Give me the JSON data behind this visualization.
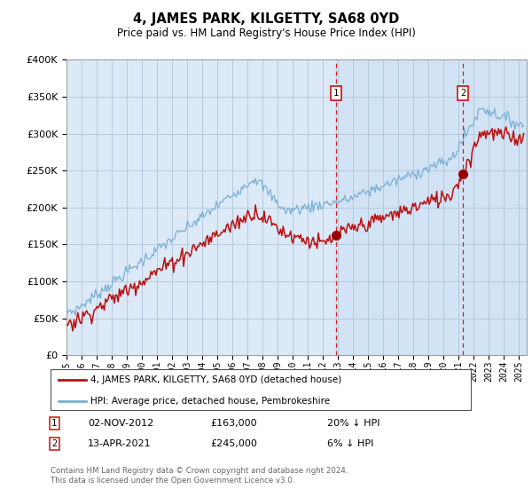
{
  "title": "4, JAMES PARK, KILGETTY, SA68 0YD",
  "subtitle": "Price paid vs. HM Land Registry's House Price Index (HPI)",
  "ylim": [
    0,
    400000
  ],
  "xlim_start": 1995.0,
  "xlim_end": 2025.5,
  "bg_color": "#dce9f7",
  "grid_color": "#b0c4d8",
  "hpi_color": "#7ab0d4",
  "price_color": "#bb1111",
  "annotation1": {
    "label": "1",
    "date": "02-NOV-2012",
    "price": "£163,000",
    "note": "20% ↓ HPI",
    "x_year": 2012.84
  },
  "annotation2": {
    "label": "2",
    "date": "13-APR-2021",
    "price": "£245,000",
    "note": "6% ↓ HPI",
    "x_year": 2021.28
  },
  "legend_label1": "4, JAMES PARK, KILGETTY, SA68 0YD (detached house)",
  "legend_label2": "HPI: Average price, detached house, Pembrokeshire",
  "footer": "Contains HM Land Registry data © Crown copyright and database right 2024.\nThis data is licensed under the Open Government Licence v3.0.",
  "sale1_price": 163000,
  "sale2_price": 245000
}
